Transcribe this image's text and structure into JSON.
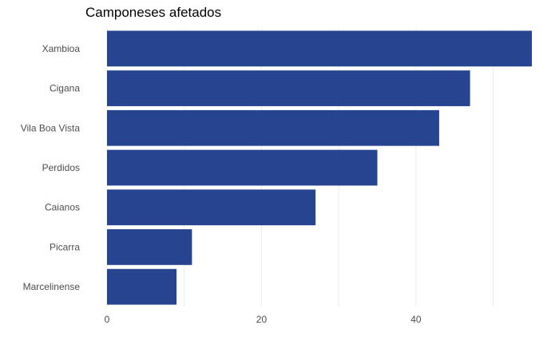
{
  "chart_data": {
    "type": "bar",
    "orientation": "horizontal",
    "title": "Camponeses afetados",
    "xlabel": "",
    "ylabel": "",
    "categories": [
      "Xambioa",
      "Cigana",
      "Vila Boa Vista",
      "Perdidos",
      "Caianos",
      "Picarra",
      "Marcelinense"
    ],
    "values": [
      55,
      47,
      43,
      35,
      27,
      11,
      9
    ],
    "xlim": [
      0,
      55
    ],
    "xticks": [
      0,
      20,
      40
    ],
    "grid": true,
    "legend": "none",
    "bar_color": "#26448f",
    "grid_color": "#ebebeb"
  }
}
